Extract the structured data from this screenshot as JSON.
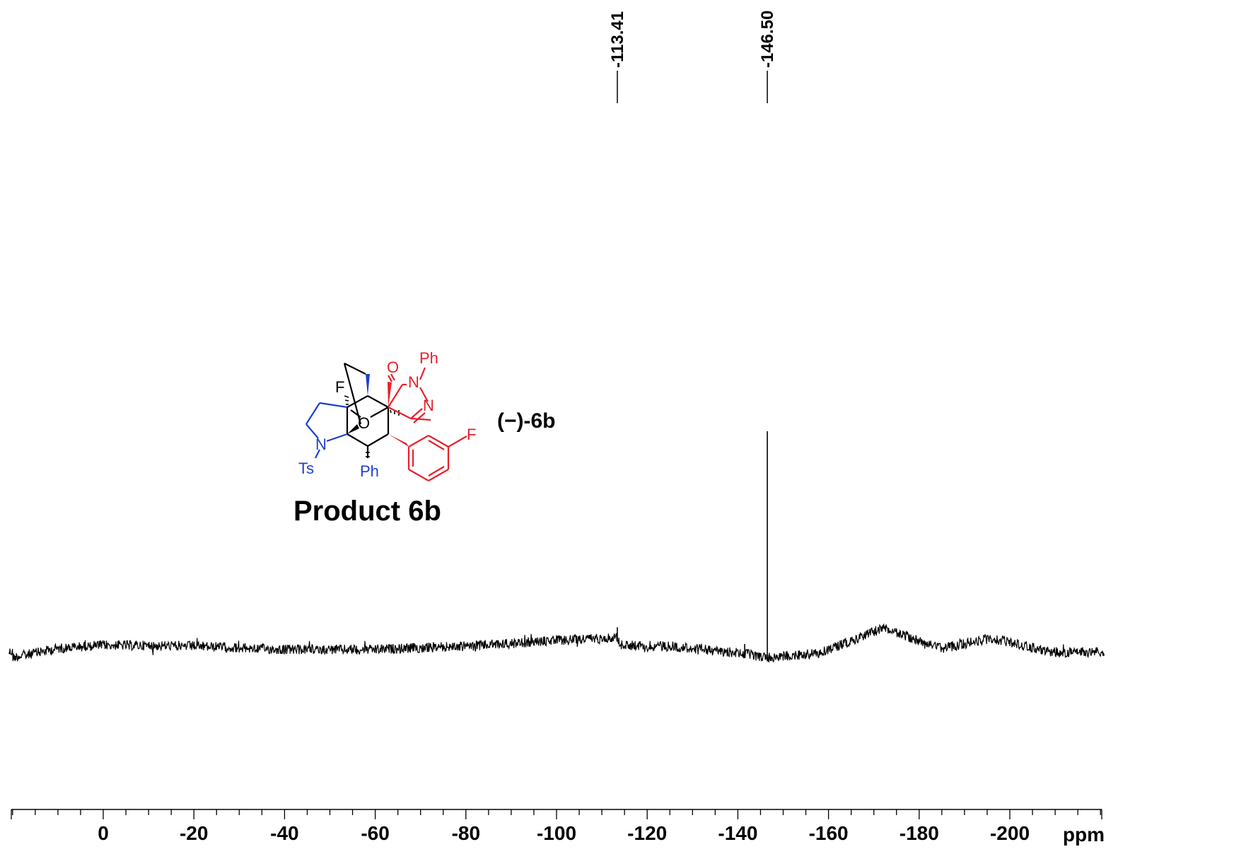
{
  "chart_data": {
    "type": "line",
    "title": "",
    "xlabel": "ppm",
    "ylabel": "",
    "x_reversed": true,
    "xlim": [
      20,
      -222
    ],
    "ticks": {
      "major": [
        0,
        -20,
        -40,
        -60,
        -80,
        -100,
        -120,
        -140,
        -160,
        -180,
        -200
      ],
      "labels": [
        "0",
        "-20",
        "-40",
        "-60",
        "-80",
        "-100",
        "-120",
        "-140",
        "-160",
        "-180",
        "-200"
      ],
      "minor_step": 5
    },
    "peaks": [
      {
        "ppm": -113.41,
        "label": "-113.41",
        "relative_height": 0.01
      },
      {
        "ppm": -146.5,
        "label": "-146.50",
        "relative_height": 1.0
      },
      {
        "ppm": -141.5,
        "label": "",
        "relative_height": 0.06
      }
    ],
    "baseline": [
      {
        "ppm": 20,
        "y": 0.0
      },
      {
        "ppm": 10,
        "y": 0.04
      },
      {
        "ppm": 0,
        "y": 0.055
      },
      {
        "ppm": -20,
        "y": 0.05
      },
      {
        "ppm": -40,
        "y": 0.035
      },
      {
        "ppm": -60,
        "y": 0.035
      },
      {
        "ppm": -80,
        "y": 0.05
      },
      {
        "ppm": -100,
        "y": 0.075
      },
      {
        "ppm": -113.4,
        "y": 0.09
      },
      {
        "ppm": -114,
        "y": 0.055
      },
      {
        "ppm": -125,
        "y": 0.05
      },
      {
        "ppm": -140,
        "y": 0.02
      },
      {
        "ppm": -147,
        "y": 0.0
      },
      {
        "ppm": -158,
        "y": 0.02
      },
      {
        "ppm": -172,
        "y": 0.13
      },
      {
        "ppm": -185,
        "y": 0.04
      },
      {
        "ppm": -196,
        "y": 0.085
      },
      {
        "ppm": -210,
        "y": 0.02
      },
      {
        "ppm": -222,
        "y": 0.025
      }
    ]
  },
  "structure": {
    "title": "Product 6b",
    "compound_label": "(−)-6b",
    "atoms": {
      "F_top": "F",
      "O_bridge": "O",
      "N_ring": "N",
      "Ts": "Ts",
      "Ph_bottom": "Ph",
      "O_carbonyl": "O",
      "N_amide": "N",
      "Ph_top": "Ph",
      "N_imine": "N",
      "F_aryl": "F"
    },
    "colors": {
      "core": "#000000",
      "pyrrolidine": "#1f3fcf",
      "pyrazolone": "#e8202a"
    }
  }
}
